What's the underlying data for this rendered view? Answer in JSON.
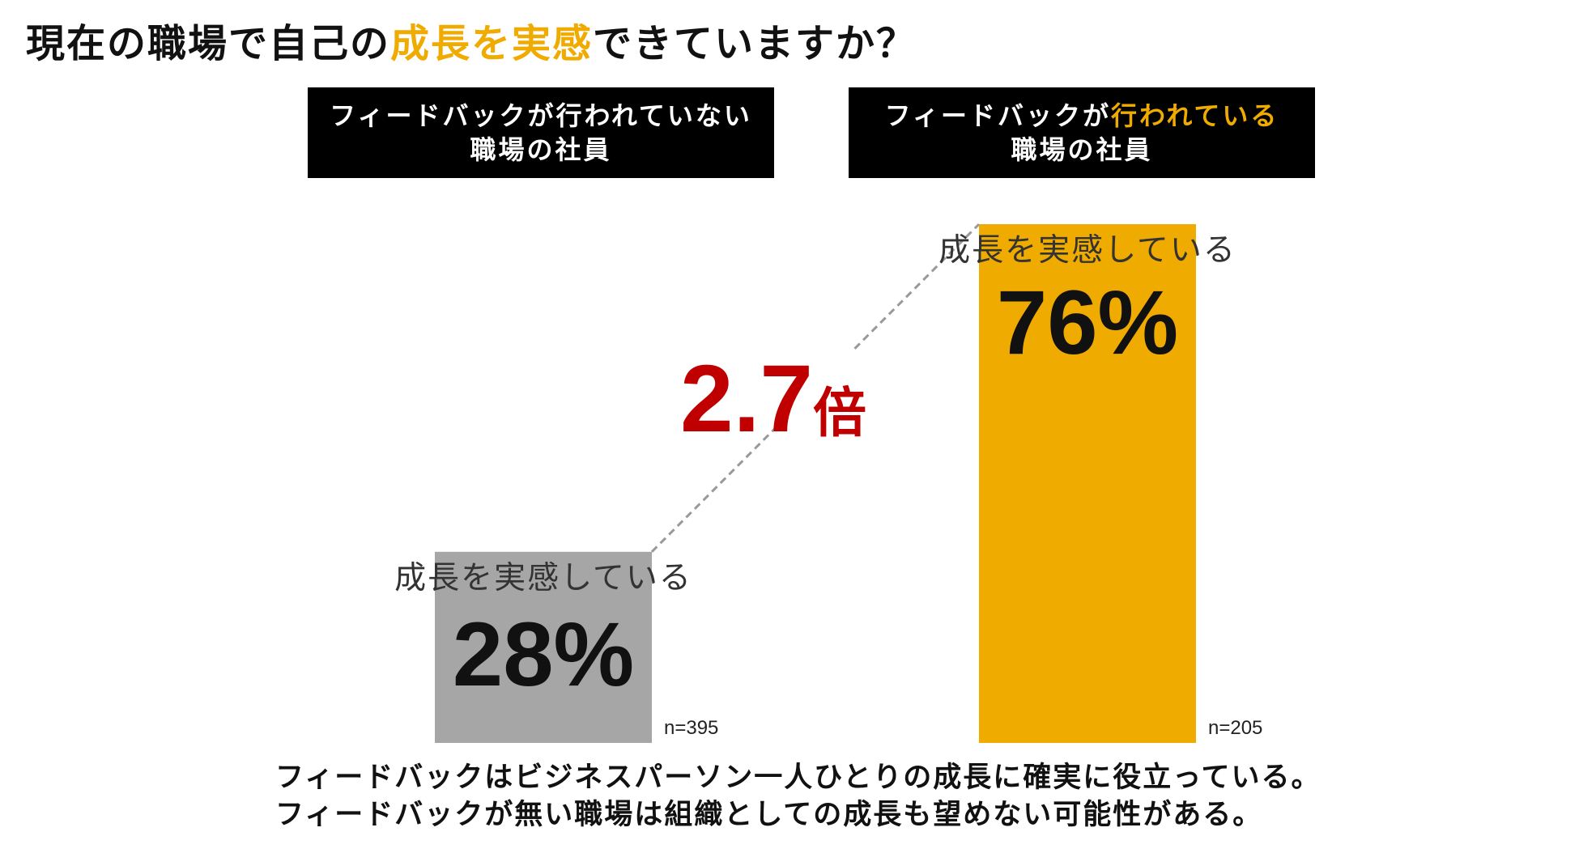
{
  "title": {
    "prefix": "現在の職場で自己の",
    "highlight": "成長を実感",
    "suffix": "できていますか？"
  },
  "headers": [
    {
      "line1_prefix": "フィードバックが行われていない",
      "line1_highlight": "",
      "line2": "職場の社員"
    },
    {
      "line1_prefix": "フィードバックが",
      "line1_highlight": "行われている",
      "line2": "職場の社員"
    }
  ],
  "multiplier": {
    "value": "2.7",
    "unit": "倍"
  },
  "footer": {
    "line1": "フィードバックはビジネスパーソン一人ひとりの成長に確実に役立っている。",
    "line2": "フィードバックが無い職場は組織としての成長も望めない可能性がある。"
  },
  "colors": {
    "highlight": "#f0ab00",
    "bar_no_feedback": "#a6a6a6",
    "bar_feedback": "#f0ab00",
    "multiplier": "#c00000",
    "header_bg": "#000000",
    "dashed_line": "#999999"
  },
  "chart_data": {
    "type": "bar",
    "categories": [
      "フィードバックが行われていない職場の社員",
      "フィードバックが行われている職場の社員"
    ],
    "series": [
      {
        "values": [
          28,
          76
        ]
      }
    ],
    "data_labels": [
      "28%",
      "76%"
    ],
    "category_caption": [
      "成長を実感している",
      "成長を実感している"
    ],
    "sample_sizes": [
      "n=395",
      "n=205"
    ],
    "ylim": [
      0,
      100
    ],
    "grid": false,
    "legend": "none"
  }
}
